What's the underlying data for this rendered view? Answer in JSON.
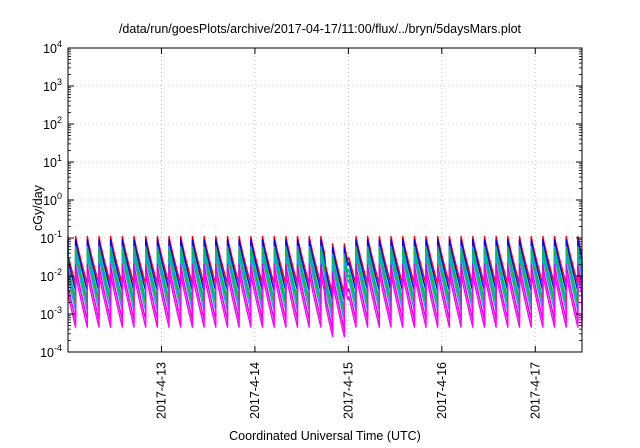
{
  "chart_data": {
    "type": "line",
    "title": "/data/run/goesPlots/archive/2017-04-17/11:00/flux/../bryn/5daysMars.plot",
    "xlabel": "Coordinated Universal Time (UTC)",
    "ylabel": "cGy/day",
    "yscale": "log",
    "ylim": [
      0.0001,
      10000
    ],
    "xlim": [
      "2017-04-12 00:00",
      "2017-04-17 12:00"
    ],
    "y_ticks": [
      {
        "base": "10",
        "exp": "-4"
      },
      {
        "base": "10",
        "exp": "-3"
      },
      {
        "base": "10",
        "exp": "-2"
      },
      {
        "base": "10",
        "exp": "-1"
      },
      {
        "base": "10",
        "exp": "0"
      },
      {
        "base": "10",
        "exp": "1"
      },
      {
        "base": "10",
        "exp": "2"
      },
      {
        "base": "10",
        "exp": "3"
      },
      {
        "base": "10",
        "exp": "4"
      }
    ],
    "x_ticks": [
      "2017-4-13",
      "2017-4-14",
      "2017-4-15",
      "2017-4-16",
      "2017-4-17"
    ],
    "grid": true,
    "sawtooth_period_days": 0.125,
    "data_gap": "2017-04-15 00:00",
    "series": [
      {
        "color": "#ff0000",
        "peak": 0.11,
        "trough": 0.006
      },
      {
        "color": "#0000ff",
        "peak": 0.09,
        "trough": 0.004
      },
      {
        "color": "#00b0b0",
        "peak": 0.06,
        "trough": 0.0025
      },
      {
        "color": "#00cc00",
        "peak": 0.045,
        "trough": 0.0018
      },
      {
        "color": "#00b0e0",
        "peak": 0.035,
        "trough": 0.0012
      },
      {
        "color": "#e000e0",
        "peak": 0.02,
        "trough": 0.0007
      },
      {
        "color": "#ff00ff",
        "peak": 0.012,
        "trough": 0.00045
      }
    ]
  }
}
